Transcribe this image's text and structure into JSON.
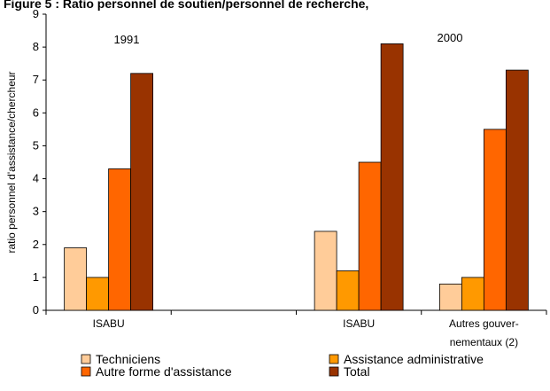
{
  "chart_data": {
    "type": "bar",
    "title": "Figure 5 : Ratio personnel de soutien/personnel de recherche,",
    "y_label": "ratio personnel d'assistance/chercheur",
    "annotations": [
      "1991",
      "2000"
    ],
    "categories": [
      "ISABU",
      null,
      "ISABU",
      "Autres gouver-nementaux (2)"
    ],
    "series": [
      {
        "name": "Techniciens",
        "color": "#ffcc99",
        "values": [
          1.9,
          null,
          2.4,
          0.8
        ]
      },
      {
        "name": "Assistance administrative",
        "color": "#ff9900",
        "values": [
          1.0,
          null,
          1.2,
          1.0
        ]
      },
      {
        "name": "Autre forme d'assistance",
        "color": "#ff6600",
        "values": [
          4.3,
          null,
          4.5,
          5.5
        ]
      },
      {
        "name": "Total",
        "color": "#993300",
        "values": [
          7.2,
          null,
          8.1,
          7.3
        ]
      }
    ],
    "ylim": [
      0,
      9
    ],
    "yticks": [
      0,
      1,
      2,
      3,
      4,
      5,
      6,
      7,
      8,
      9
    ],
    "grid": false,
    "legend": "bottom"
  }
}
